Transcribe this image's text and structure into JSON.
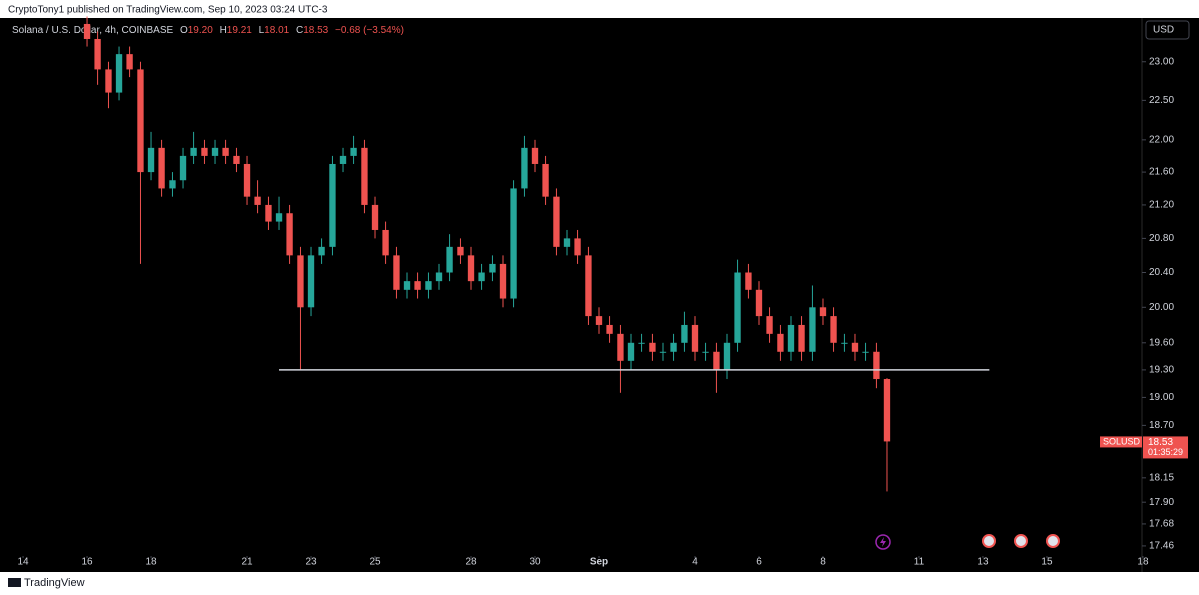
{
  "chart_data": {
    "type": "candlestick",
    "published": "CryptoTony1 published on TradingView.com, Sep 10, 2023 03:24 UTC-3",
    "symbol": "Solana / U.S. Dollar, 4h, COINBASE",
    "ohlc": [
      {
        "key": "O",
        "value": "19.20"
      },
      {
        "key": "H",
        "value": "19.21"
      },
      {
        "key": "L",
        "value": "18.01"
      },
      {
        "key": "C",
        "value": "18.53"
      }
    ],
    "change": "−0.68 (−3.54%)",
    "currency": "USD",
    "brand": "TradingView",
    "price_tag": {
      "symbol": "SOLUSD",
      "price": "18.53",
      "countdown": "01:35:29"
    },
    "up_color": "#26a69a",
    "down_color": "#ef5350",
    "log": true,
    "x": [
      16,
      16.33,
      16.67,
      17,
      17.33,
      17.67,
      18,
      18.33,
      18.67,
      19,
      19.33,
      19.67,
      20,
      20.33,
      20.67,
      21,
      21.33,
      21.67,
      22,
      22.33,
      22.67,
      23,
      23.33,
      23.67,
      24,
      24.33,
      24.67,
      25,
      25.33,
      25.67,
      26,
      26.33,
      26.67,
      27,
      27.33,
      27.67,
      28,
      28.33,
      28.67,
      29,
      29.33,
      29.67,
      30,
      30.33,
      30.67,
      31,
      31.33,
      31.67,
      32,
      32.33,
      32.67,
      33,
      33.33,
      33.67,
      34,
      34.33,
      34.67,
      35,
      35.33,
      35.67,
      36,
      36.33,
      36.67,
      37,
      37.33,
      37.67,
      38,
      38.33,
      38.67,
      39,
      39.33,
      39.67,
      40,
      40.33,
      40.67,
      41
    ],
    "open": [
      23.5,
      23.3,
      22.9,
      22.6,
      23.1,
      22.9,
      21.6,
      21.9,
      21.4,
      21.5,
      21.8,
      21.9,
      21.8,
      21.9,
      21.8,
      21.7,
      21.3,
      21.2,
      21.0,
      21.1,
      20.6,
      20.0,
      20.6,
      20.7,
      21.7,
      21.8,
      21.9,
      21.2,
      20.9,
      20.6,
      20.2,
      20.3,
      20.2,
      20.3,
      20.4,
      20.7,
      20.6,
      20.3,
      20.4,
      20.5,
      20.1,
      21.4,
      21.9,
      21.7,
      21.3,
      20.7,
      20.8,
      20.6,
      19.9,
      19.8,
      19.7,
      19.4,
      19.6,
      19.6,
      19.5,
      19.5,
      19.6,
      19.8,
      19.5,
      19.5,
      19.3,
      19.6,
      20.4,
      20.2,
      19.9,
      19.7,
      19.5,
      19.8,
      19.5,
      20.0,
      19.9,
      19.6,
      19.6,
      19.5,
      19.5,
      19.2
    ],
    "high": [
      23.6,
      23.4,
      23.0,
      23.2,
      23.2,
      23.0,
      22.1,
      22.0,
      21.6,
      21.9,
      22.1,
      22.0,
      22.0,
      22.0,
      21.9,
      21.8,
      21.5,
      21.3,
      21.3,
      21.2,
      20.7,
      20.7,
      20.8,
      21.8,
      21.9,
      22.05,
      22.0,
      21.3,
      21.0,
      20.7,
      20.4,
      20.4,
      20.4,
      20.5,
      20.85,
      20.8,
      20.7,
      20.5,
      20.6,
      20.6,
      21.5,
      22.05,
      22.0,
      21.8,
      21.4,
      20.9,
      20.9,
      20.7,
      20.0,
      19.9,
      19.8,
      19.7,
      19.7,
      19.7,
      19.6,
      19.7,
      19.95,
      19.9,
      19.6,
      19.6,
      19.7,
      20.55,
      20.5,
      20.3,
      20.0,
      19.8,
      19.9,
      19.9,
      20.25,
      20.1,
      20.0,
      19.7,
      19.7,
      19.6,
      19.6,
      19.21
    ],
    "low": [
      23.2,
      22.7,
      22.4,
      22.5,
      22.8,
      20.5,
      21.5,
      21.3,
      21.3,
      21.4,
      21.7,
      21.7,
      21.7,
      21.7,
      21.6,
      21.2,
      21.1,
      20.9,
      20.9,
      20.5,
      19.3,
      19.9,
      20.5,
      20.6,
      21.6,
      21.7,
      21.1,
      20.8,
      20.5,
      20.1,
      20.1,
      20.1,
      20.1,
      20.2,
      20.3,
      20.5,
      20.2,
      20.2,
      20.3,
      20.0,
      20.0,
      21.3,
      21.6,
      21.2,
      20.6,
      20.6,
      20.5,
      19.8,
      19.7,
      19.6,
      19.05,
      19.3,
      19.5,
      19.4,
      19.4,
      19.4,
      19.5,
      19.4,
      19.4,
      19.05,
      19.2,
      19.5,
      20.1,
      19.8,
      19.6,
      19.4,
      19.4,
      19.4,
      19.4,
      19.8,
      19.5,
      19.5,
      19.4,
      19.4,
      19.1,
      18.01
    ],
    "close": [
      23.3,
      22.9,
      22.6,
      23.1,
      22.9,
      21.6,
      21.9,
      21.4,
      21.5,
      21.8,
      21.9,
      21.8,
      21.9,
      21.8,
      21.7,
      21.3,
      21.2,
      21.0,
      21.1,
      20.6,
      20.0,
      20.6,
      20.7,
      21.7,
      21.8,
      21.9,
      21.2,
      20.9,
      20.6,
      20.2,
      20.3,
      20.2,
      20.3,
      20.4,
      20.7,
      20.6,
      20.3,
      20.4,
      20.5,
      20.1,
      21.4,
      21.9,
      21.7,
      21.3,
      20.7,
      20.8,
      20.6,
      19.9,
      19.8,
      19.7,
      19.4,
      19.6,
      19.6,
      19.5,
      19.5,
      19.6,
      19.8,
      19.5,
      19.5,
      19.3,
      19.6,
      20.4,
      20.2,
      19.9,
      19.7,
      19.5,
      19.8,
      19.5,
      20.0,
      19.9,
      19.6,
      19.6,
      19.5,
      19.5,
      19.2,
      18.53
    ],
    "hline": {
      "value": 19.3,
      "x": [
        22,
        44.2
      ]
    },
    "xlim": [
      13.28,
      48.97
    ],
    "xticks": [
      14,
      16,
      18,
      21,
      23,
      25,
      28,
      30,
      {
        "value": 32,
        "label": "Sep"
      },
      {
        "value": 35,
        "label": "4"
      },
      {
        "value": 37,
        "label": "6"
      },
      {
        "value": 39,
        "label": "8"
      },
      {
        "value": 42,
        "label": "11"
      },
      {
        "value": 44,
        "label": "13"
      },
      {
        "value": 46,
        "label": "15"
      },
      {
        "value": 49,
        "label": "18"
      }
    ],
    "ylim": [
      17.37,
      23.58
    ],
    "yticks": [
      17.46,
      17.68,
      {
        "value": 17.9,
        "label": "17.90"
      },
      18.15,
      {
        "value": 18.7,
        "label": "18.70"
      },
      {
        "value": 19,
        "label": "19.00"
      },
      {
        "value": 19.3,
        "label": "19.30"
      },
      {
        "value": 19.6,
        "label": "19.60"
      },
      {
        "value": 20,
        "label": "20.00"
      },
      {
        "value": 20.4,
        "label": "20.40"
      },
      {
        "value": 20.8,
        "label": "20.80"
      },
      {
        "value": 21.2,
        "label": "21.20"
      },
      {
        "value": 21.6,
        "label": "21.60"
      },
      {
        "value": 22,
        "label": "22.00"
      },
      {
        "value": 22.5,
        "label": "22.50"
      },
      {
        "value": 23,
        "label": "23.00"
      }
    ]
  }
}
